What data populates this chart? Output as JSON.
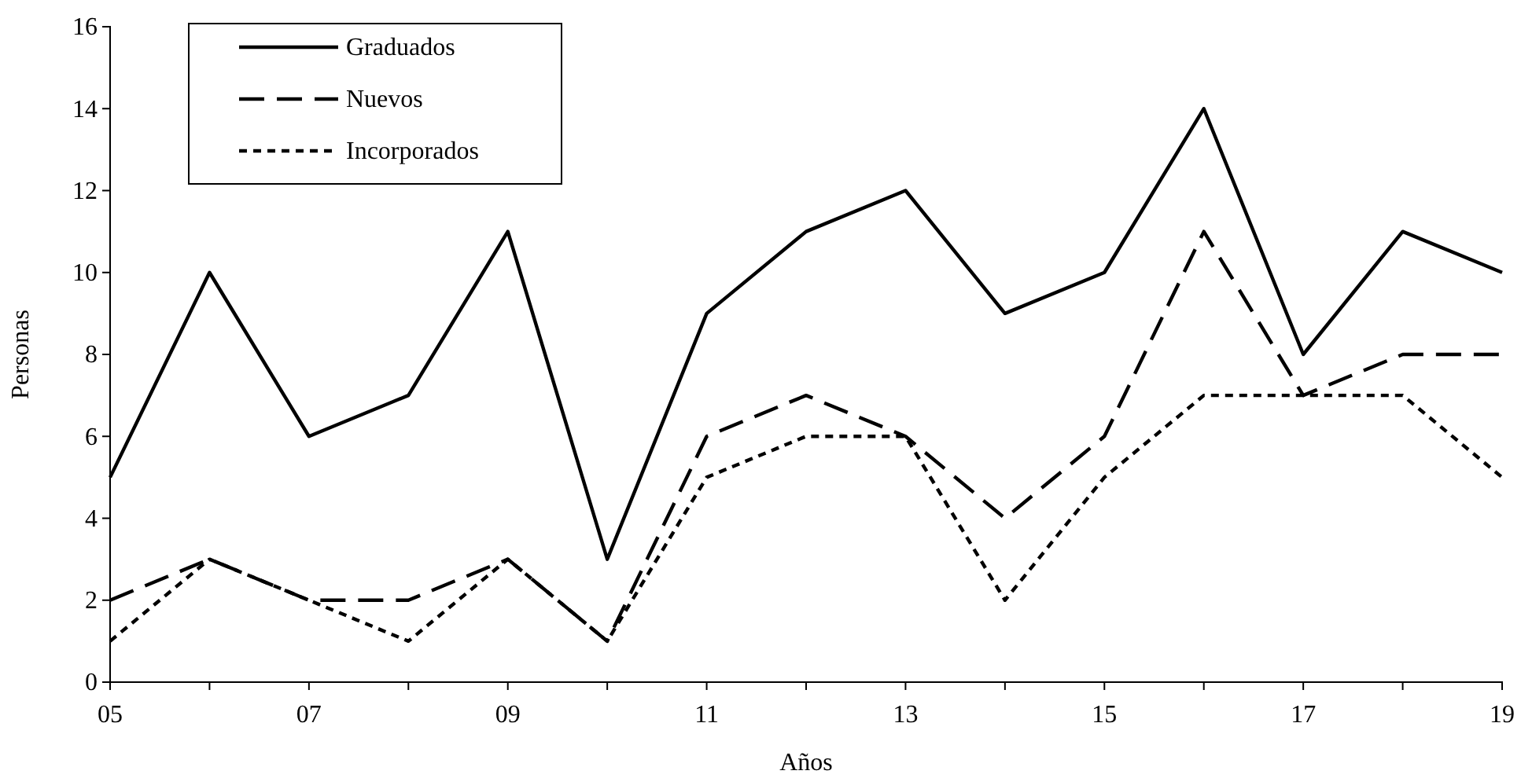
{
  "chart_data": {
    "type": "line",
    "xlabel": "Años",
    "ylabel": "Personas",
    "categories": [
      "05",
      null,
      "07",
      null,
      "09",
      null,
      "11",
      null,
      "13",
      null,
      "15",
      null,
      "17",
      null,
      "19"
    ],
    "ylim": [
      0,
      16
    ],
    "yticks": [
      0,
      2,
      4,
      6,
      8,
      10,
      12,
      14,
      16
    ],
    "grid": false,
    "legend": "top left",
    "marker": "none",
    "series": [
      {
        "name": "Graduados",
        "color": "#000000",
        "line_style": "solid",
        "values": [
          5,
          10,
          6,
          7,
          11,
          3,
          9,
          11,
          12,
          9,
          10,
          14,
          8,
          11,
          10
        ]
      },
      {
        "name": "Nuevos",
        "color": "#000000",
        "line_style": "dashed",
        "values": [
          2,
          3,
          2,
          2,
          3,
          1,
          6,
          7,
          6,
          4,
          6,
          11,
          7,
          8,
          8
        ]
      },
      {
        "name": "Incorporados",
        "color": "#000000",
        "line_style": "dotted",
        "values": [
          1,
          3,
          2,
          1,
          3,
          1,
          5,
          6,
          6,
          2,
          5,
          7,
          7,
          7,
          5
        ]
      }
    ]
  }
}
